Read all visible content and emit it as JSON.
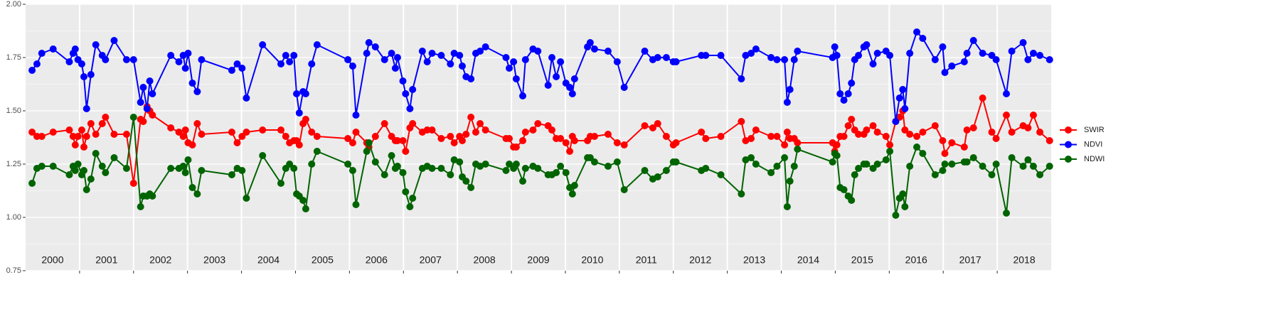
{
  "chart_data": {
    "type": "line",
    "xlim": [
      2000,
      2019
    ],
    "xticks": [
      2001,
      2002,
      2003,
      2004,
      2005,
      2006,
      2007,
      2008,
      2009,
      2010,
      2011,
      2012,
      2013,
      2014,
      2015,
      2016,
      2017,
      2018
    ],
    "year_labels": [
      "2000",
      "2001",
      "2002",
      "2003",
      "2004",
      "2005",
      "2006",
      "2007",
      "2008",
      "2009",
      "2010",
      "2011",
      "2012",
      "2013",
      "2014",
      "2015",
      "2016",
      "2017",
      "2018"
    ],
    "ylim": [
      0.75,
      2.0
    ],
    "yticks": [
      {
        "value": 0.75,
        "label": "0.75"
      },
      {
        "value": 1.0,
        "label": "1.00"
      },
      {
        "value": 1.25,
        "label": "1.25"
      },
      {
        "value": 1.5,
        "label": "1.50"
      },
      {
        "value": 1.75,
        "label": "1.75"
      },
      {
        "value": 2.0,
        "label": "2.00"
      }
    ],
    "grid": true,
    "legend": "right",
    "x": [
      2000.12,
      2000.21,
      2000.3,
      2000.51,
      2000.81,
      2000.88,
      2000.92,
      2000.97,
      2001.04,
      2001.08,
      2001.13,
      2001.21,
      2001.3,
      2001.42,
      2001.48,
      2001.64,
      2001.87,
      2002.0,
      2002.13,
      2002.18,
      2002.25,
      2002.3,
      2002.35,
      2002.69,
      2002.84,
      2002.92,
      2002.96,
      2003.01,
      2003.09,
      2003.18,
      2003.26,
      2003.82,
      2003.92,
      2004.01,
      2004.09,
      2004.39,
      2004.73,
      2004.82,
      2004.89,
      2004.97,
      2005.02,
      2005.07,
      2005.14,
      2005.19,
      2005.3,
      2005.4,
      2005.97,
      2006.06,
      2006.12,
      2006.32,
      2006.36,
      2006.48,
      2006.65,
      2006.78,
      2006.85,
      2006.89,
      2006.99,
      2007.04,
      2007.12,
      2007.17,
      2007.35,
      2007.44,
      2007.53,
      2007.7,
      2007.87,
      2007.94,
      2008.04,
      2008.09,
      2008.16,
      2008.25,
      2008.34,
      2008.42,
      2008.52,
      2008.9,
      2008.96,
      2009.04,
      2009.09,
      2009.21,
      2009.26,
      2009.4,
      2009.49,
      2009.68,
      2009.75,
      2009.83,
      2009.91,
      2010.01,
      2010.08,
      2010.13,
      2010.17,
      2010.41,
      2010.46,
      2010.54,
      2010.79,
      2010.96,
      2011.09,
      2011.47,
      2011.62,
      2011.71,
      2011.87,
      2012.0,
      2012.05,
      2012.52,
      2012.6,
      2012.88,
      2013.26,
      2013.34,
      2013.44,
      2013.53,
      2013.81,
      2013.92,
      2014.06,
      2014.11,
      2014.16,
      2014.24,
      2014.3,
      2014.95,
      2014.99,
      2015.03,
      2015.09,
      2015.16,
      2015.24,
      2015.3,
      2015.36,
      2015.43,
      2015.53,
      2015.58,
      2015.7,
      2015.78,
      2015.94,
      2016.01,
      2016.12,
      2016.19,
      2016.25,
      2016.29,
      2016.38,
      2016.51,
      2016.62,
      2016.85,
      2016.99,
      2017.03,
      2017.16,
      2017.39,
      2017.44,
      2017.56,
      2017.73,
      2017.9,
      2017.98,
      2018.17,
      2018.27,
      2018.48,
      2018.57,
      2018.67,
      2018.79,
      2018.97
    ],
    "series": [
      {
        "name": "SWIR",
        "color": "#ff0000",
        "values": [
          1.4,
          1.38,
          1.38,
          1.4,
          1.41,
          1.38,
          1.34,
          1.38,
          1.41,
          1.33,
          1.38,
          1.44,
          1.39,
          1.44,
          1.47,
          1.39,
          1.39,
          1.16,
          1.46,
          1.45,
          1.52,
          1.5,
          1.48,
          1.42,
          1.4,
          1.38,
          1.41,
          1.35,
          1.34,
          1.44,
          1.39,
          1.4,
          1.35,
          1.38,
          1.4,
          1.41,
          1.41,
          1.38,
          1.35,
          1.36,
          1.36,
          1.34,
          1.44,
          1.46,
          1.4,
          1.38,
          1.37,
          1.35,
          1.4,
          1.35,
          1.33,
          1.38,
          1.44,
          1.38,
          1.36,
          1.36,
          1.36,
          1.31,
          1.42,
          1.44,
          1.4,
          1.41,
          1.41,
          1.37,
          1.38,
          1.35,
          1.38,
          1.36,
          1.39,
          1.47,
          1.4,
          1.44,
          1.41,
          1.37,
          1.37,
          1.33,
          1.33,
          1.36,
          1.4,
          1.41,
          1.44,
          1.43,
          1.41,
          1.37,
          1.37,
          1.35,
          1.31,
          1.38,
          1.36,
          1.36,
          1.38,
          1.38,
          1.39,
          1.35,
          1.34,
          1.43,
          1.42,
          1.44,
          1.38,
          1.34,
          1.35,
          1.4,
          1.37,
          1.38,
          1.45,
          1.36,
          1.37,
          1.41,
          1.38,
          1.38,
          1.34,
          1.4,
          1.37,
          1.37,
          1.35,
          1.35,
          1.31,
          1.34,
          1.38,
          1.38,
          1.43,
          1.46,
          1.41,
          1.39,
          1.39,
          1.41,
          1.43,
          1.4,
          1.38,
          1.34,
          1.45,
          1.47,
          1.5,
          1.41,
          1.39,
          1.38,
          1.4,
          1.43,
          1.36,
          1.3,
          1.35,
          1.33,
          1.41,
          1.42,
          1.56,
          1.4,
          1.37,
          1.48,
          1.4,
          1.43,
          1.42,
          1.48,
          1.4,
          1.36
        ]
      },
      {
        "name": "NDVI",
        "color": "#0000ff",
        "values": [
          1.69,
          1.72,
          1.77,
          1.79,
          1.73,
          1.77,
          1.79,
          1.74,
          1.72,
          1.66,
          1.51,
          1.67,
          1.81,
          1.76,
          1.74,
          1.83,
          1.74,
          1.74,
          1.54,
          1.61,
          1.51,
          1.64,
          1.58,
          1.76,
          1.73,
          1.76,
          1.7,
          1.77,
          1.63,
          1.59,
          1.74,
          1.69,
          1.72,
          1.7,
          1.56,
          1.81,
          1.72,
          1.76,
          1.73,
          1.76,
          1.58,
          1.49,
          1.59,
          1.58,
          1.72,
          1.81,
          1.74,
          1.71,
          1.48,
          1.77,
          1.82,
          1.8,
          1.74,
          1.77,
          1.7,
          1.75,
          1.64,
          1.58,
          1.51,
          1.6,
          1.78,
          1.73,
          1.77,
          1.76,
          1.72,
          1.77,
          1.76,
          1.71,
          1.66,
          1.65,
          1.77,
          1.78,
          1.8,
          1.75,
          1.7,
          1.73,
          1.65,
          1.57,
          1.74,
          1.79,
          1.78,
          1.62,
          1.75,
          1.66,
          1.73,
          1.63,
          1.61,
          1.58,
          1.65,
          1.8,
          1.82,
          1.79,
          1.78,
          1.73,
          1.61,
          1.78,
          1.74,
          1.75,
          1.75,
          1.73,
          1.73,
          1.76,
          1.76,
          1.76,
          1.65,
          1.76,
          1.77,
          1.79,
          1.75,
          1.74,
          1.74,
          1.54,
          1.6,
          1.74,
          1.78,
          1.75,
          1.8,
          1.76,
          1.58,
          1.55,
          1.58,
          1.63,
          1.74,
          1.76,
          1.8,
          1.81,
          1.72,
          1.77,
          1.78,
          1.76,
          1.45,
          1.56,
          1.6,
          1.51,
          1.77,
          1.87,
          1.84,
          1.74,
          1.8,
          1.68,
          1.71,
          1.73,
          1.77,
          1.83,
          1.77,
          1.76,
          1.74,
          1.58,
          1.78,
          1.82,
          1.74,
          1.77,
          1.76,
          1.74
        ]
      },
      {
        "name": "NDWI",
        "color": "#006400",
        "values": [
          1.16,
          1.23,
          1.24,
          1.24,
          1.2,
          1.24,
          1.22,
          1.25,
          1.2,
          1.22,
          1.13,
          1.18,
          1.3,
          1.24,
          1.21,
          1.28,
          1.23,
          1.47,
          1.05,
          1.1,
          1.1,
          1.11,
          1.1,
          1.23,
          1.23,
          1.24,
          1.21,
          1.27,
          1.14,
          1.11,
          1.22,
          1.2,
          1.23,
          1.22,
          1.09,
          1.29,
          1.16,
          1.23,
          1.25,
          1.23,
          1.11,
          1.1,
          1.08,
          1.04,
          1.25,
          1.31,
          1.25,
          1.22,
          1.06,
          1.31,
          1.35,
          1.26,
          1.2,
          1.29,
          1.23,
          1.24,
          1.21,
          1.12,
          1.05,
          1.09,
          1.23,
          1.24,
          1.23,
          1.23,
          1.2,
          1.27,
          1.26,
          1.19,
          1.17,
          1.14,
          1.25,
          1.24,
          1.25,
          1.22,
          1.25,
          1.23,
          1.25,
          1.17,
          1.23,
          1.24,
          1.23,
          1.2,
          1.2,
          1.21,
          1.24,
          1.21,
          1.14,
          1.11,
          1.15,
          1.28,
          1.28,
          1.26,
          1.24,
          1.26,
          1.13,
          1.22,
          1.18,
          1.19,
          1.22,
          1.26,
          1.26,
          1.22,
          1.23,
          1.2,
          1.11,
          1.27,
          1.28,
          1.25,
          1.21,
          1.24,
          1.28,
          1.05,
          1.17,
          1.24,
          1.32,
          1.26,
          1.3,
          1.29,
          1.14,
          1.13,
          1.1,
          1.08,
          1.2,
          1.23,
          1.25,
          1.25,
          1.23,
          1.25,
          1.27,
          1.31,
          1.01,
          1.09,
          1.11,
          1.05,
          1.24,
          1.33,
          1.3,
          1.2,
          1.22,
          1.25,
          1.25,
          1.26,
          1.26,
          1.28,
          1.24,
          1.2,
          1.25,
          1.02,
          1.28,
          1.24,
          1.27,
          1.24,
          1.2,
          1.24
        ]
      }
    ]
  }
}
